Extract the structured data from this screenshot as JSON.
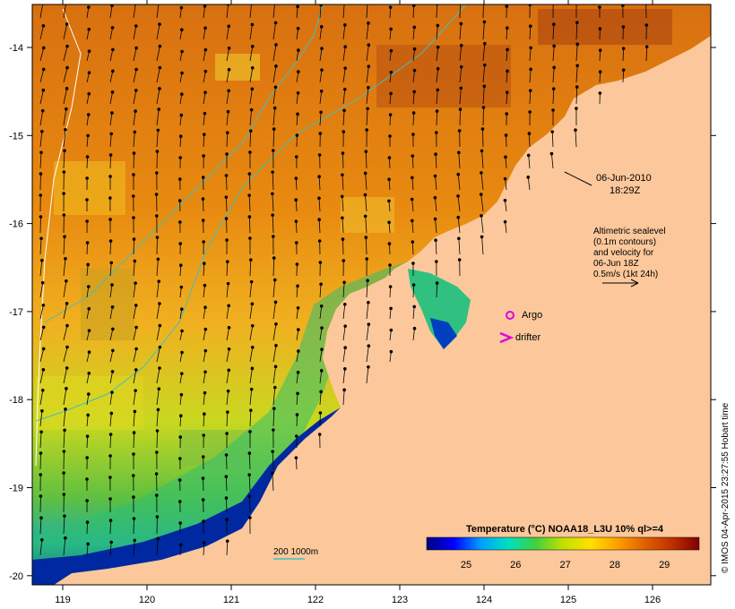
{
  "map": {
    "timestamp": {
      "date": "06-Jun-2010",
      "time": "18:29Z"
    },
    "legend_note": [
      "Altimetric sealevel",
      "(0.1m contours)",
      "and velocity for",
      "06-Jun 18Z",
      "0.5m/s (1kt 24h)"
    ],
    "markers": {
      "argo": "Argo",
      "drifter": "drifter"
    },
    "depth_legend": "200  1000m",
    "colorbar": {
      "title": "Temperature (°C) NOAA18_L3U 10% ql>=4",
      "ticks": [
        "25",
        "26",
        "27",
        "28",
        "29"
      ],
      "stops": [
        "#000080",
        "#0000ff",
        "#00a0ff",
        "#00e0c0",
        "#40d040",
        "#c0e000",
        "#ffe000",
        "#ffa000",
        "#e06000",
        "#c03000",
        "#800000"
      ]
    },
    "credit": "© IMOS 04-Apr-2015 23:27:55 Hobart time",
    "axes": {
      "lon_ticks": [
        "119",
        "120",
        "121",
        "122",
        "123",
        "124",
        "125",
        "126"
      ],
      "lat_ticks": [
        "-14",
        "-15",
        "-16",
        "-17",
        "-18",
        "-19",
        "-20"
      ]
    },
    "colors": {
      "land": "#fcc89b",
      "ocean_warm": "#e8820a",
      "argo": "#e000e0",
      "drifter": "#e000e0",
      "isobath": "#40c0c0"
    }
  }
}
